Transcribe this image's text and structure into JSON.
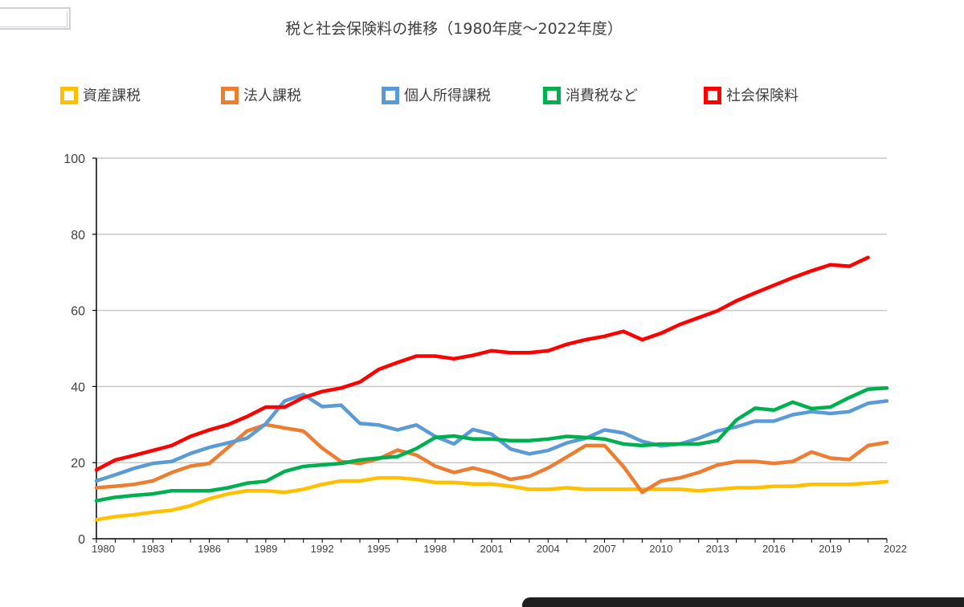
{
  "chart_data": {
    "type": "line",
    "title": "税と社会保険料の推移（1980年度～2022年度）",
    "xlabel": "",
    "ylabel": "",
    "xlim": [
      1980,
      2022
    ],
    "ylim": [
      0,
      100
    ],
    "yticks": [
      0,
      20,
      40,
      60,
      80,
      100
    ],
    "xticks": [
      1980,
      1983,
      1986,
      1989,
      1992,
      1995,
      1998,
      2001,
      2004,
      2007,
      2010,
      2013,
      2016,
      2019,
      2022
    ],
    "grid": true,
    "legend_position": "top",
    "x": [
      1980,
      1981,
      1982,
      1983,
      1984,
      1985,
      1986,
      1987,
      1988,
      1989,
      1990,
      1991,
      1992,
      1993,
      1994,
      1995,
      1996,
      1997,
      1998,
      1999,
      2000,
      2001,
      2002,
      2003,
      2004,
      2005,
      2006,
      2007,
      2008,
      2009,
      2010,
      2011,
      2012,
      2013,
      2014,
      2015,
      2016,
      2017,
      2018,
      2019,
      2020,
      2021,
      2022
    ],
    "series": [
      {
        "name": "資産課税",
        "color": "#FFC000",
        "values": [
          5.0,
          5.8,
          6.3,
          7.0,
          7.5,
          8.7,
          10.5,
          11.8,
          12.6,
          12.6,
          12.2,
          13.0,
          14.3,
          15.2,
          15.2,
          16.0,
          16.0,
          15.6,
          14.8,
          14.8,
          14.4,
          14.4,
          13.8,
          13.0,
          13.0,
          13.4,
          13.0,
          13.0,
          13.0,
          13.0,
          13.0,
          13.0,
          12.6,
          13.0,
          13.4,
          13.4,
          13.8,
          13.8,
          14.3,
          14.3,
          14.3,
          14.6,
          15.0
        ]
      },
      {
        "name": "法人課税",
        "color": "#ED7D31",
        "values": [
          13.4,
          13.8,
          14.3,
          15.2,
          17.4,
          19.1,
          19.8,
          24.0,
          28.3,
          30.0,
          29.1,
          28.3,
          23.8,
          20.3,
          19.8,
          21.0,
          23.3,
          22.0,
          19.1,
          17.4,
          18.6,
          17.4,
          15.6,
          16.4,
          18.6,
          21.5,
          24.5,
          24.5,
          19.0,
          12.2,
          15.2,
          16.0,
          17.4,
          19.4,
          20.3,
          20.3,
          19.8,
          20.3,
          22.8,
          21.2,
          20.8,
          24.5,
          25.3
        ]
      },
      {
        "name": "個人所得課税",
        "color": "#5B9BD5",
        "values": [
          15.2,
          16.8,
          18.5,
          19.8,
          20.3,
          22.4,
          24.0,
          25.2,
          26.4,
          30.2,
          36.2,
          37.9,
          34.7,
          35.1,
          30.3,
          29.9,
          28.6,
          29.9,
          26.9,
          24.9,
          28.7,
          27.5,
          23.6,
          22.3,
          23.2,
          25.2,
          26.4,
          28.6,
          27.8,
          25.6,
          24.4,
          24.9,
          26.4,
          28.3,
          29.4,
          30.9,
          30.9,
          32.6,
          33.4,
          32.9,
          33.4,
          35.6,
          36.2
        ]
      },
      {
        "name": "消費税など",
        "color": "#00B050",
        "values": [
          10.0,
          10.9,
          11.4,
          11.8,
          12.6,
          12.6,
          12.6,
          13.4,
          14.6,
          15.1,
          17.7,
          19.0,
          19.4,
          19.8,
          20.7,
          21.2,
          21.6,
          23.7,
          26.6,
          27.0,
          26.2,
          26.2,
          25.8,
          25.8,
          26.2,
          26.9,
          26.6,
          26.2,
          24.9,
          24.5,
          24.9,
          24.9,
          24.9,
          25.8,
          31.2,
          34.3,
          33.8,
          35.9,
          34.2,
          34.6,
          37.1,
          39.3,
          39.6
        ]
      },
      {
        "name": "社会保険料",
        "color": "#FF0000",
        "values": [
          18.1,
          20.7,
          21.9,
          23.2,
          24.5,
          26.9,
          28.6,
          30.0,
          32.1,
          34.6,
          34.6,
          37.1,
          38.7,
          39.6,
          41.2,
          44.5,
          46.3,
          48.0,
          48.0,
          47.3,
          48.2,
          49.4,
          48.9,
          48.9,
          49.4,
          51.1,
          52.3,
          53.2,
          54.5,
          52.3,
          54.0,
          56.3,
          58.1,
          59.9,
          62.5,
          64.6,
          66.6,
          68.6,
          70.4,
          72.0,
          71.6,
          73.9,
          null
        ]
      }
    ]
  }
}
